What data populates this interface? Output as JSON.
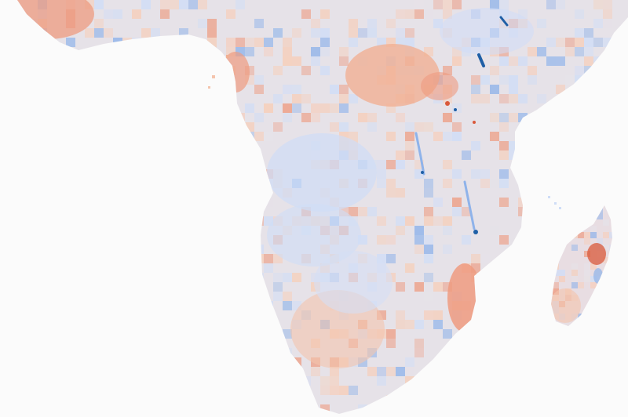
{
  "map": {
    "type": "raster-anomaly-map",
    "region": "southern-africa-and-madagascar",
    "colors": {
      "background": "#fbfbfb",
      "land_neutral": "#e6e2e8",
      "positive_light": "#f7cdb7",
      "positive_strong": "#ee9b80",
      "positive_extreme": "#d9583a",
      "negative_light": "#cfddf7",
      "negative_strong": "#8fb3ea",
      "negative_extreme": "#1f5fa6"
    }
  }
}
